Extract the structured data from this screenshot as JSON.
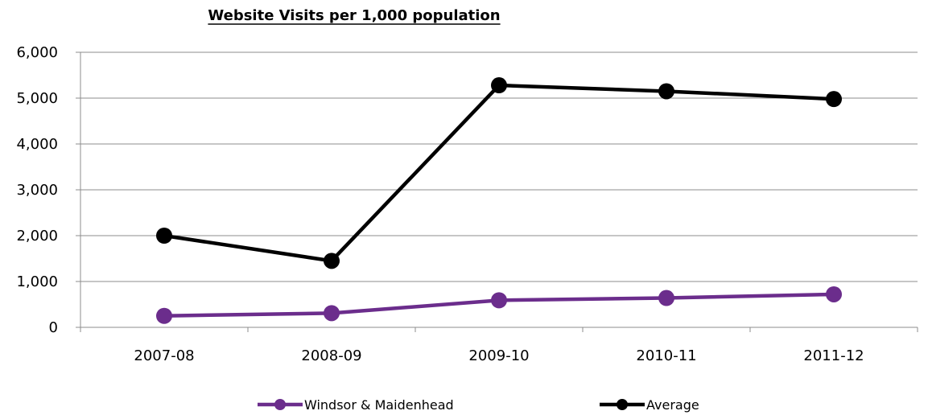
{
  "chart_data": {
    "type": "line",
    "title": "Website Visits per 1,000 population",
    "categories": [
      "2007-08",
      "2008-09",
      "2009-10",
      "2010-11",
      "2011-12"
    ],
    "series": [
      {
        "name": "Windsor & Maidenhead",
        "color": "#6b2d8c",
        "values": [
          250,
          310,
          590,
          640,
          720
        ]
      },
      {
        "name": "Average",
        "color": "#000000",
        "values": [
          2000,
          1450,
          5280,
          5150,
          4980
        ]
      }
    ],
    "ylim": [
      0,
      6000
    ],
    "yticks": [
      0,
      1000,
      2000,
      3000,
      4000,
      5000,
      6000
    ],
    "ytick_labels": [
      "0",
      "1,000",
      "2,000",
      "3,000",
      "4,000",
      "5,000",
      "6,000"
    ],
    "xlabel": "",
    "ylabel": "",
    "grid": true,
    "legend_position": "bottom"
  }
}
